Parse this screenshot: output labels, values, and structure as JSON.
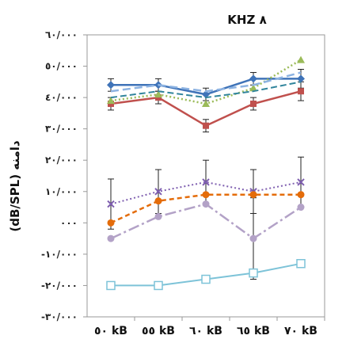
{
  "chart_data": {
    "type": "line",
    "title": "KHZ ٨",
    "ylabel": "(dB/SPL) دامنه",
    "xlabel": "",
    "categories": [
      "٥٠ kB",
      "٥٥ kB",
      "٦٠ kB",
      "٦٥ kB",
      "٧٠ kB"
    ],
    "y_ticks": [
      "٦٠/٠٠٠",
      "٥٠/٠٠٠",
      "٤٠/٠٠٠",
      "٣٠/٠٠٠",
      "٢٠/٠٠٠",
      "١٠/٠٠٠",
      "٠٠٠",
      "-١٠/٠٠٠",
      "-٢٠/٠٠٠",
      "-٣٠/٠٠٠"
    ],
    "ylim": [
      -30,
      60
    ],
    "grid": false,
    "legend": "none",
    "series": [
      {
        "values": [
          44,
          44,
          41,
          46,
          46
        ],
        "err": [
          2,
          2,
          2,
          2,
          3
        ],
        "color": "#3f73b8",
        "dash": "",
        "marker": "diamond",
        "width": 2.5
      },
      {
        "values": [
          38,
          40,
          31,
          38,
          42
        ],
        "err": [
          2,
          2,
          2,
          2,
          3
        ],
        "color": "#c0504d",
        "dash": "",
        "marker": "square",
        "width": 2.5
      },
      {
        "values": [
          39,
          41,
          38,
          43,
          52
        ],
        "err": [
          0,
          0,
          0,
          0,
          0
        ],
        "color": "#9bbb59",
        "dash": "2,3",
        "marker": "triangle",
        "width": 2.5
      },
      {
        "values": [
          42,
          44,
          42,
          44,
          48
        ],
        "err": [
          0,
          0,
          0,
          0,
          0
        ],
        "color": "#8db3e2",
        "dash": "10,5",
        "marker": "none",
        "width": 2.5
      },
      {
        "values": [
          40,
          42,
          40,
          42,
          45
        ],
        "err": [
          0,
          0,
          0,
          0,
          0
        ],
        "color": "#31859c",
        "dash": "8,4",
        "marker": "none",
        "width": 2
      },
      {
        "values": [
          6,
          10,
          13,
          10,
          13
        ],
        "err": [
          8,
          7,
          7,
          7,
          8
        ],
        "color": "#7f5fb0",
        "dash": "2,3",
        "marker": "x",
        "width": 2
      },
      {
        "values": [
          0,
          7,
          9,
          9,
          9
        ],
        "err": [
          0,
          0,
          0,
          0,
          0
        ],
        "color": "#e46c0a",
        "dash": "6,4",
        "marker": "circle",
        "width": 2.5
      },
      {
        "values": [
          -5,
          2,
          6,
          -5,
          5
        ],
        "err": [
          0,
          0,
          0,
          13,
          0
        ],
        "color": "#b3a2c7",
        "dash": "14,4,3,4",
        "marker": "circle",
        "width": 2.5
      },
      {
        "values": [
          -20,
          -20,
          -18,
          -16,
          -13
        ],
        "err": [
          0,
          0,
          0,
          0,
          0
        ],
        "color": "#7dc3d8",
        "dash": "",
        "marker": "hollow-square",
        "width": 2
      }
    ]
  }
}
